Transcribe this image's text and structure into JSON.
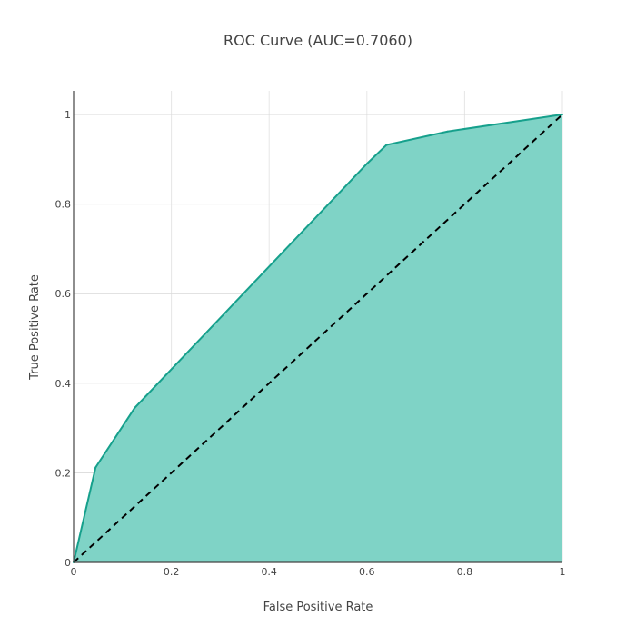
{
  "chart_data": {
    "type": "area",
    "title": "ROC Curve (AUC=0.7060)",
    "xlabel": "False Positive Rate",
    "ylabel": "True Positive Rate",
    "xlim": [
      0,
      1
    ],
    "ylim": [
      0,
      1
    ],
    "xticks": [
      "0",
      "0.2",
      "0.4",
      "0.6",
      "0.8",
      "1"
    ],
    "yticks": [
      "0",
      "0.2",
      "0.4",
      "0.6",
      "0.8",
      "1"
    ],
    "grid": true,
    "series": [
      {
        "x": [
          0,
          0.045,
          0.125,
          0.6,
          0.64,
          0.765,
          1
        ],
        "y": [
          0,
          0.212,
          0.345,
          0.89,
          0.932,
          0.962,
          1
        ],
        "fill_color": "#7fd3c6",
        "line_color": "#16a08c"
      }
    ],
    "diagonal": {
      "x": [
        0,
        1
      ],
      "y": [
        0,
        1
      ],
      "style": "dashed",
      "color": "#000000"
    }
  }
}
